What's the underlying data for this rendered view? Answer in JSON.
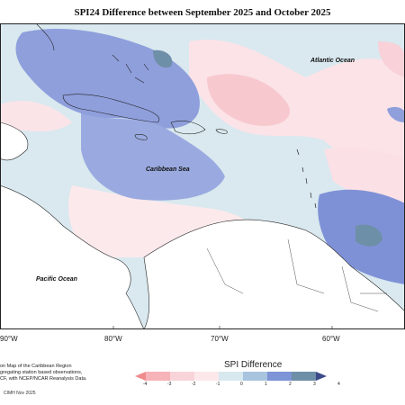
{
  "title": "SPI24 Difference between September 2025 and October 2025",
  "labels": {
    "atlantic": "Atlantic Ocean",
    "caribbean": "Caribbean Sea",
    "pacific": "Pacific Ocean"
  },
  "longitudes": [
    "90°W",
    "80°W",
    "70°W",
    "60°W"
  ],
  "footer": {
    "line1": "on Map of the Caribbean Region",
    "line2": "gregating station based observations,",
    "line3": "CF, with NCEP/NCAR Reanalysis Data.",
    "credit": "CIMH Nov 2025"
  },
  "legend": {
    "title": "SPI Difference",
    "ticks": [
      "-4",
      "-3",
      "-2",
      "-1",
      "0",
      "1",
      "2",
      "3",
      "4"
    ],
    "colors": [
      "#f08a8c",
      "#f6b3b8",
      "#f8d4d8",
      "#fce8ea",
      "#d7e8ee",
      "#a8c4de",
      "#7d94d6",
      "#6e8fa8",
      "#3c4a8a"
    ]
  }
}
